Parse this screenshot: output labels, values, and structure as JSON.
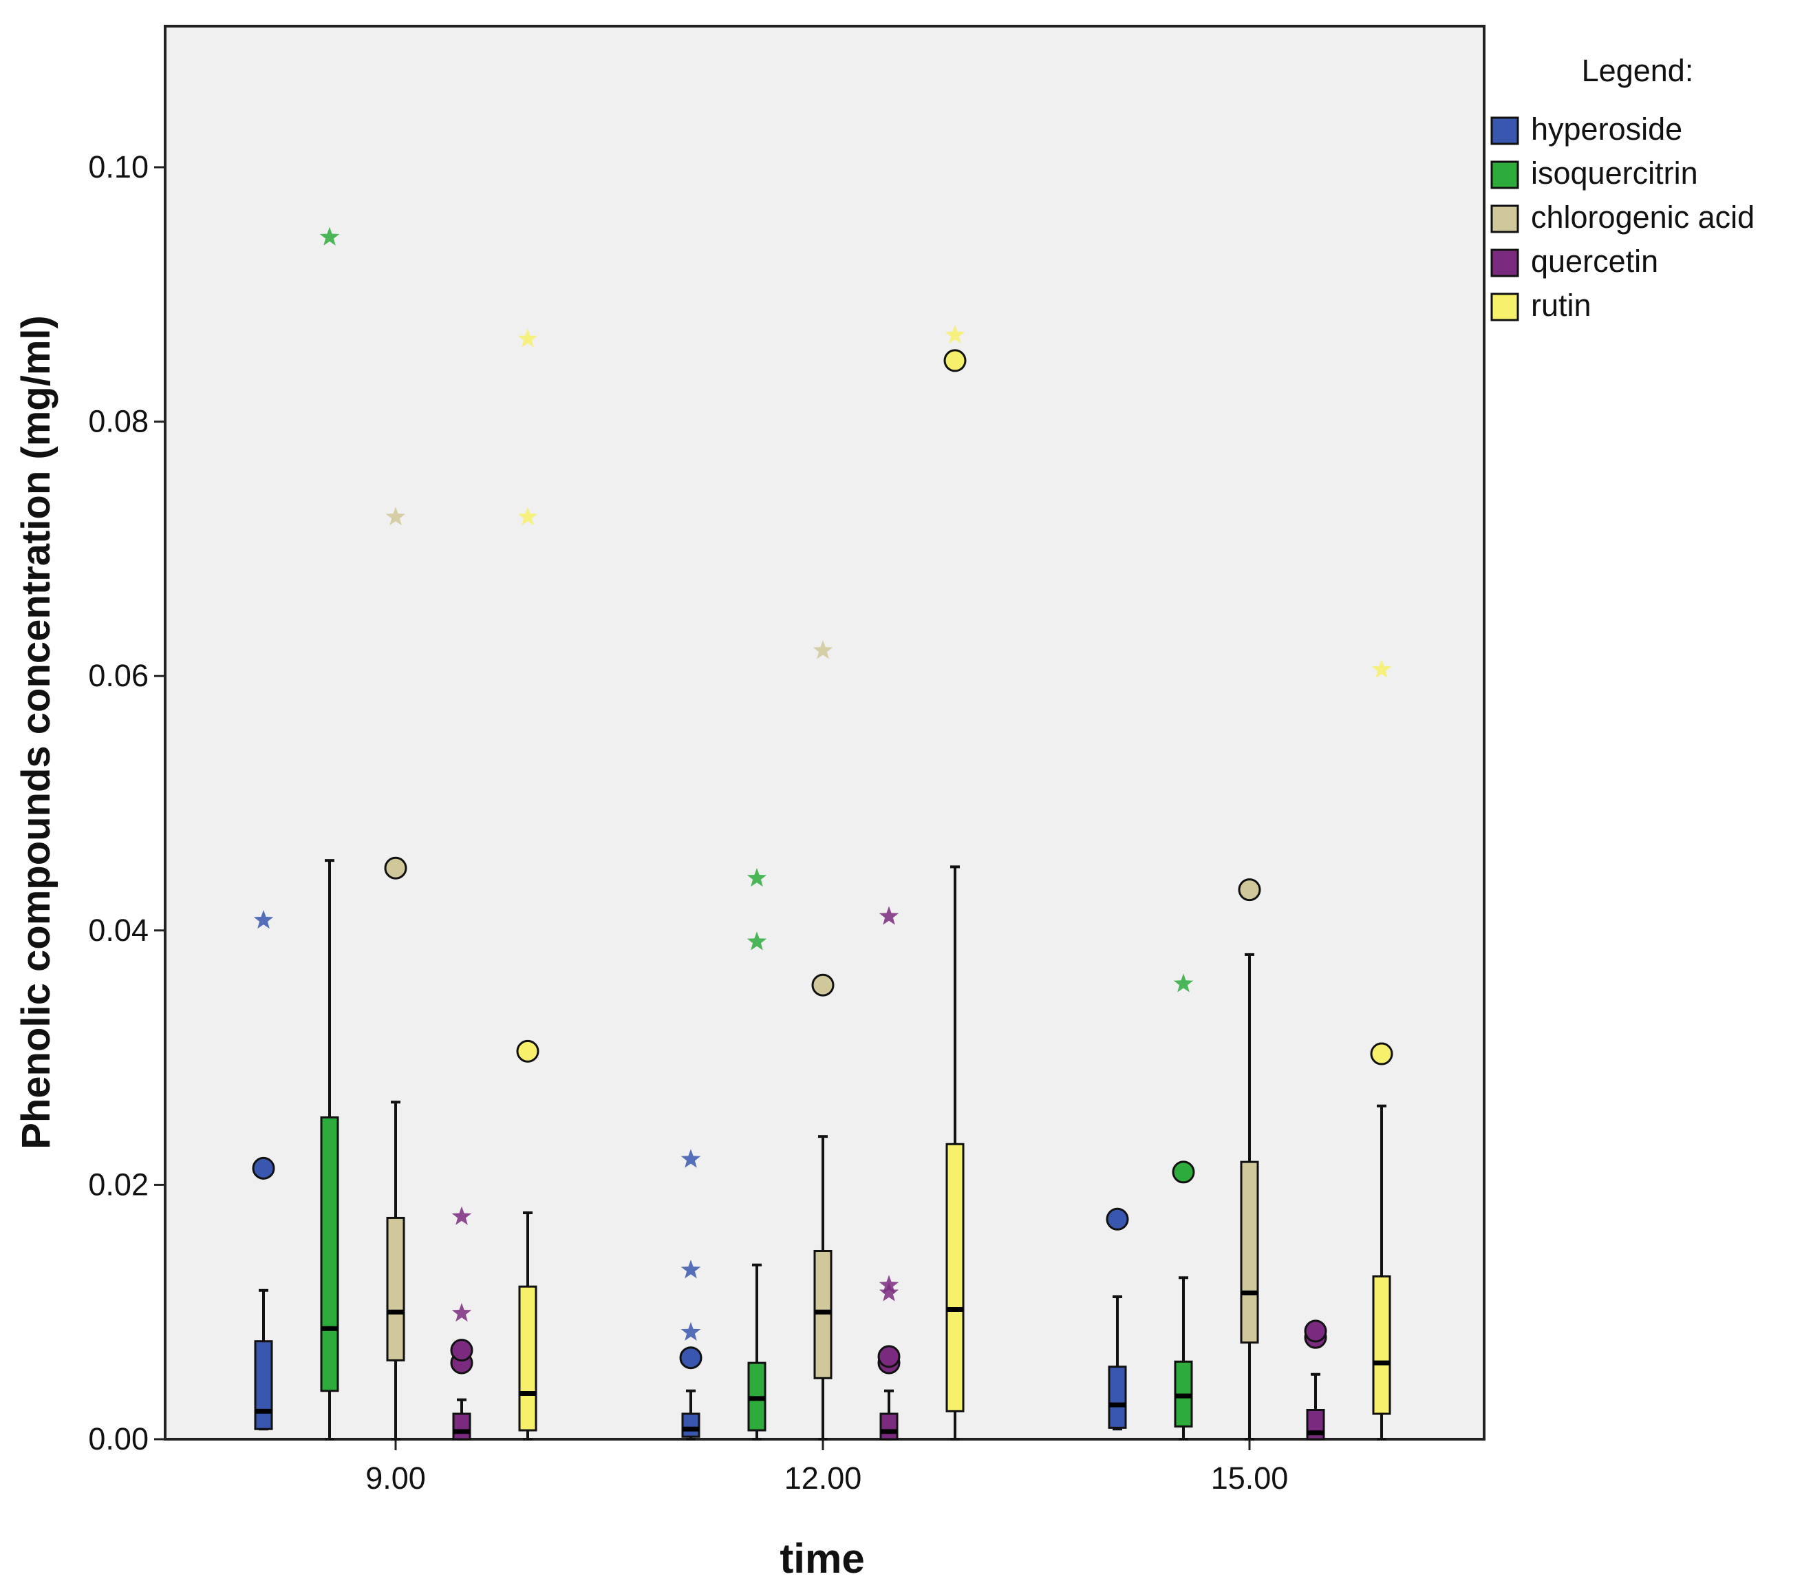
{
  "chart_data": {
    "type": "boxplot",
    "title": "",
    "xlabel": "time",
    "ylabel": "Phenolic compounds concentration (mg/ml)",
    "ylim": [
      0,
      0.111
    ],
    "yticks": [
      0.0,
      0.02,
      0.04,
      0.06,
      0.08,
      0.1
    ],
    "ytick_labels": [
      "0.00",
      "0.02",
      "0.04",
      "0.06",
      "0.08",
      "0.10"
    ],
    "grid": false,
    "legend_title": "Legend:",
    "legend_position": "right",
    "categories": [
      "9.00",
      "12.00",
      "15.00"
    ],
    "series": [
      {
        "name": "hyperoside",
        "color": "#3a57b0",
        "boxes": [
          {
            "min": 0.0008,
            "q1": 0.0008,
            "median": 0.0022,
            "q3": 0.0077,
            "max": 0.0117,
            "outliers": [
              0.0213
            ],
            "extremes": [
              0.0408
            ]
          },
          {
            "min": 0.0,
            "q1": 0.0002,
            "median": 0.0008,
            "q3": 0.002,
            "max": 0.0038,
            "outliers": [
              0.0064
            ],
            "extremes": [
              0.0084,
              0.0133,
              0.022
            ]
          },
          {
            "min": 0.0008,
            "q1": 0.0009,
            "median": 0.0027,
            "q3": 0.0057,
            "max": 0.0112,
            "outliers": [
              0.0173
            ],
            "extremes": []
          }
        ]
      },
      {
        "name": "isoquercitrin",
        "color": "#2dac3c",
        "boxes": [
          {
            "min": 0.0,
            "q1": 0.0038,
            "median": 0.0087,
            "q3": 0.0253,
            "max": 0.0455,
            "outliers": [],
            "extremes": [
              0.0945
            ]
          },
          {
            "min": 0.0,
            "q1": 0.0007,
            "median": 0.0032,
            "q3": 0.006,
            "max": 0.0137,
            "outliers": [],
            "extremes": [
              0.0391,
              0.0441
            ]
          },
          {
            "min": 0.0,
            "q1": 0.001,
            "median": 0.0034,
            "q3": 0.0061,
            "max": 0.0127,
            "outliers": [
              0.021
            ],
            "extremes": [
              0.0358
            ]
          }
        ]
      },
      {
        "name": "chlorogenic acid",
        "color": "#d0c89a",
        "boxes": [
          {
            "min": 0.0,
            "q1": 0.0062,
            "median": 0.01,
            "q3": 0.0174,
            "max": 0.0265,
            "outliers": [
              0.0449
            ],
            "extremes": [
              0.0725
            ]
          },
          {
            "min": 0.0,
            "q1": 0.0048,
            "median": 0.01,
            "q3": 0.0148,
            "max": 0.0238,
            "outliers": [
              0.0357
            ],
            "extremes": [
              0.062
            ]
          },
          {
            "min": 0.0,
            "q1": 0.0076,
            "median": 0.0115,
            "q3": 0.0218,
            "max": 0.0381,
            "outliers": [
              0.0432
            ],
            "extremes": []
          }
        ]
      },
      {
        "name": "quercetin",
        "color": "#7b2b7f",
        "boxes": [
          {
            "min": 0.0,
            "q1": 0.0,
            "median": 0.0006,
            "q3": 0.002,
            "max": 0.0031,
            "outliers": [
              0.006,
              0.007
            ],
            "extremes": [
              0.0099,
              0.0175
            ]
          },
          {
            "min": 0.0,
            "q1": 0.0,
            "median": 0.0006,
            "q3": 0.002,
            "max": 0.0038,
            "outliers": [
              0.006,
              0.0065
            ],
            "extremes": [
              0.0115,
              0.0121,
              0.0411
            ]
          },
          {
            "min": 0.0,
            "q1": 0.0,
            "median": 0.0005,
            "q3": 0.0023,
            "max": 0.0051,
            "outliers": [
              0.008,
              0.0085
            ],
            "extremes": []
          }
        ]
      },
      {
        "name": "rutin",
        "color": "#f7f06b",
        "boxes": [
          {
            "min": 0.0,
            "q1": 0.0007,
            "median": 0.0036,
            "q3": 0.012,
            "max": 0.0178,
            "outliers": [
              0.0305
            ],
            "extremes": [
              0.0725,
              0.0865
            ]
          },
          {
            "min": 0.0,
            "q1": 0.0022,
            "median": 0.0102,
            "q3": 0.0232,
            "max": 0.045,
            "outliers": [
              0.0848
            ],
            "extremes": [
              0.0868
            ]
          },
          {
            "min": 0.0,
            "q1": 0.002,
            "median": 0.006,
            "q3": 0.0128,
            "max": 0.0262,
            "outliers": [
              0.0303
            ],
            "extremes": [
              0.0605
            ]
          }
        ]
      }
    ]
  }
}
